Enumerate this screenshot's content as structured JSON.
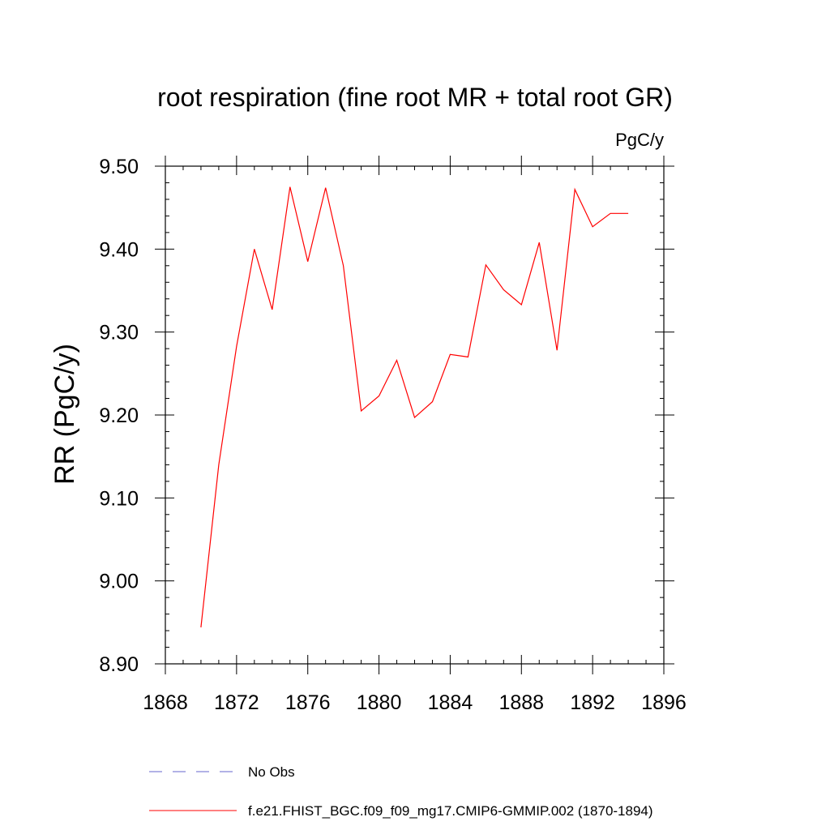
{
  "chart_data": {
    "type": "line",
    "title": "root respiration (fine root MR + total root GR)",
    "units_label": "PgC/y",
    "xlabel": "",
    "ylabel": "RR  (PgC/y)",
    "xlim": [
      1868,
      1896
    ],
    "ylim": [
      8.9,
      9.5
    ],
    "x_ticks": [
      "1868",
      "1872",
      "1876",
      "1880",
      "1884",
      "1888",
      "1892",
      "1896"
    ],
    "y_ticks": [
      "8.90",
      "9.00",
      "9.10",
      "9.20",
      "9.30",
      "9.40",
      "9.50"
    ],
    "grid": false,
    "legend_position": "bottom",
    "legend": [
      {
        "label": "No Obs",
        "style": "dashed",
        "color": "#6666cc"
      },
      {
        "label": "f.e21.FHIST_BGC.f09_f09_mg17.CMIP6-GMMIP.002 (1870-1894)",
        "style": "solid",
        "color": "#ff0000"
      }
    ],
    "series": [
      {
        "name": "f.e21.FHIST_BGC.f09_f09_mg17.CMIP6-GMMIP.002 (1870-1894)",
        "color": "#ff0000",
        "x": [
          1870,
          1871,
          1872,
          1873,
          1874,
          1875,
          1876,
          1877,
          1878,
          1879,
          1880,
          1881,
          1882,
          1883,
          1884,
          1885,
          1886,
          1887,
          1888,
          1889,
          1890,
          1891,
          1892,
          1893,
          1894
        ],
        "values": [
          8.944,
          9.14,
          9.283,
          9.4,
          9.327,
          9.475,
          9.385,
          9.474,
          9.38,
          9.205,
          9.223,
          9.266,
          9.197,
          9.216,
          9.273,
          9.27,
          9.381,
          9.351,
          9.333,
          9.408,
          9.278,
          9.472,
          9.427,
          9.443,
          9.443
        ]
      }
    ]
  }
}
